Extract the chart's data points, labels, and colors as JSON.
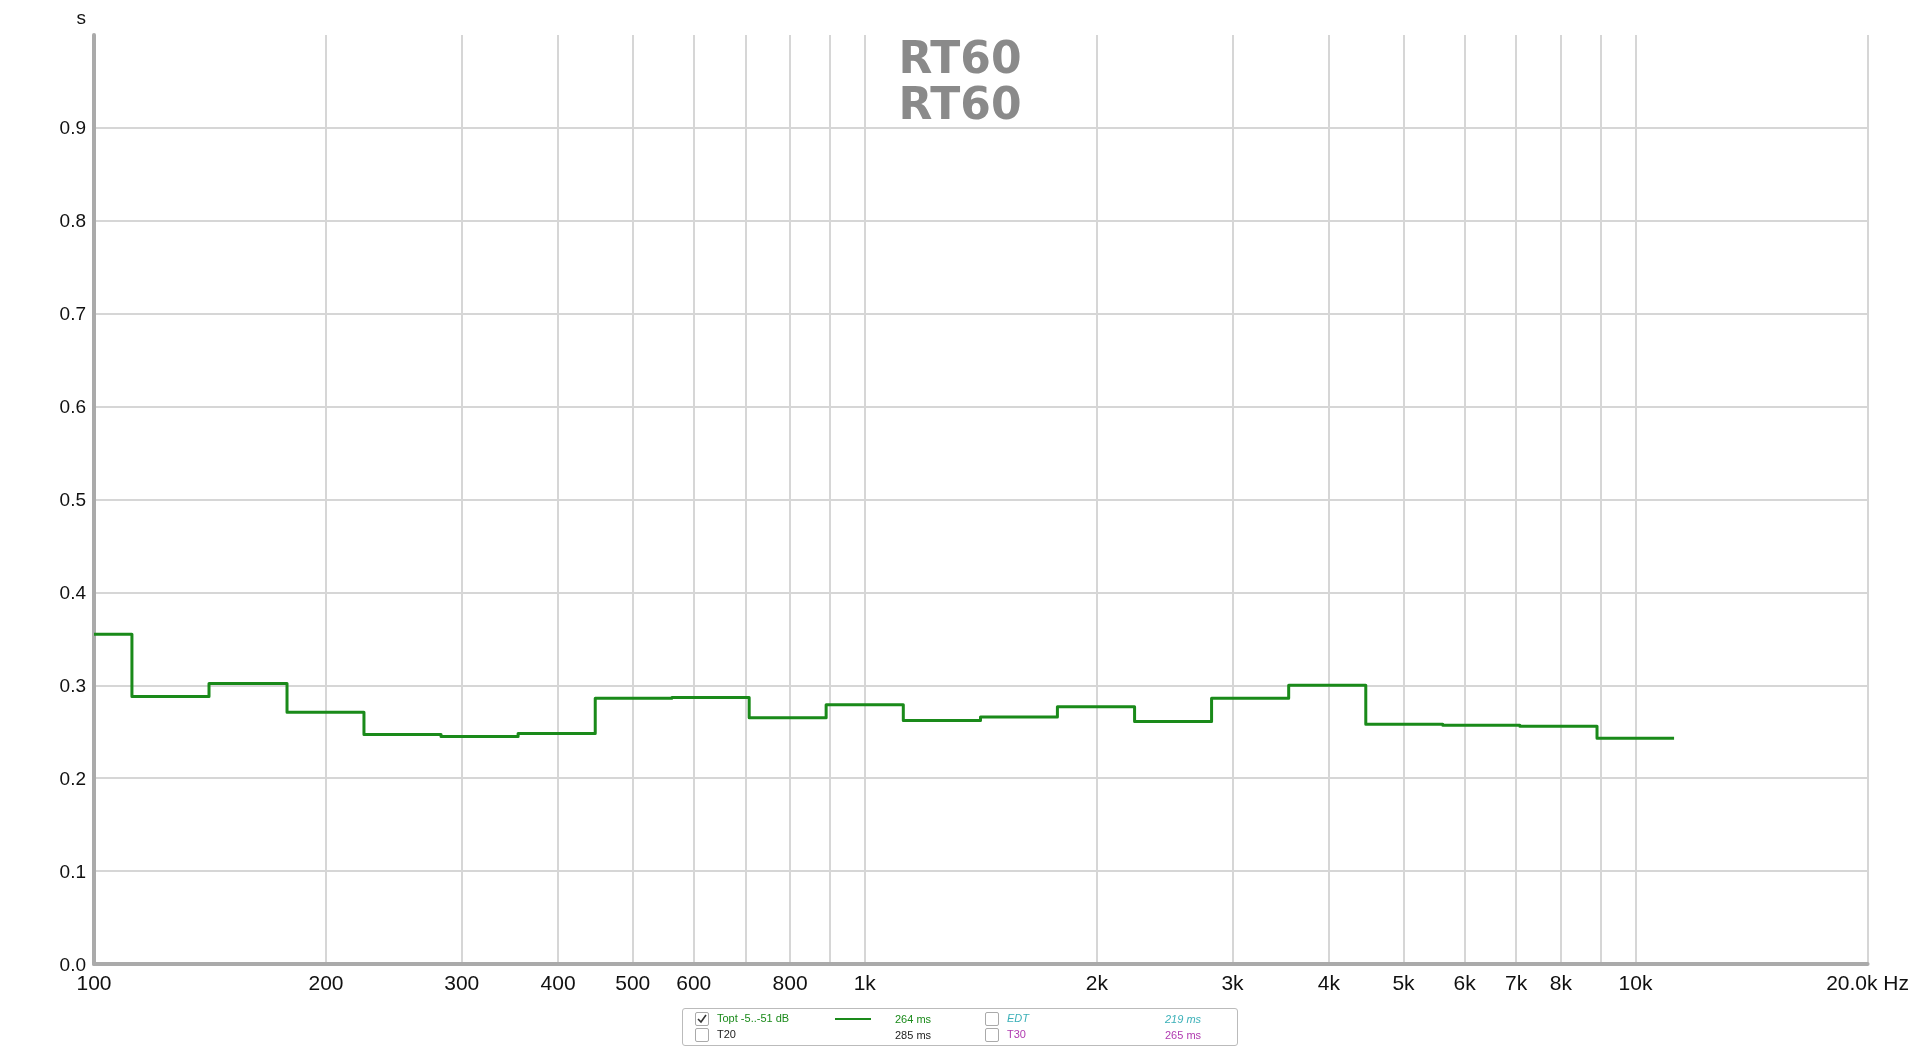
{
  "chart_data": {
    "type": "step",
    "title": "RT60",
    "subtitle": "RT60",
    "ylabel": "s",
    "x": [
      100,
      112,
      141,
      178,
      224,
      282,
      355,
      447,
      562,
      708,
      891,
      1122,
      1413,
      1778,
      2239,
      2818,
      3548,
      4467,
      5623,
      7079,
      8913,
      11220
    ],
    "series": [
      {
        "name": "Topt -5..-51 dB",
        "color": "#1a8a1a",
        "values": [
          0.355,
          0.288,
          0.302,
          0.271,
          0.247,
          0.245,
          0.248,
          0.286,
          0.287,
          0.265,
          0.279,
          0.262,
          0.266,
          0.277,
          0.261,
          0.286,
          0.3,
          0.258,
          0.257,
          0.256,
          0.243,
          0.243
        ]
      }
    ],
    "log": "x",
    "xlim": [
      100,
      20000
    ],
    "xticks": [
      100,
      200,
      300,
      400,
      500,
      600,
      {
        "value": 700,
        "label": null
      },
      800,
      {
        "value": 900,
        "label": null
      },
      {
        "value": 1000,
        "label": "1k"
      },
      {
        "value": 2000,
        "label": "2k"
      },
      {
        "value": 3000,
        "label": "3k"
      },
      {
        "value": 4000,
        "label": "4k"
      },
      {
        "value": 5000,
        "label": "5k"
      },
      {
        "value": 6000,
        "label": "6k"
      },
      {
        "value": 7000,
        "label": "7k"
      },
      {
        "value": 8000,
        "label": "8k"
      },
      {
        "value": 9000,
        "label": null
      },
      {
        "value": 10000,
        "label": "10k"
      },
      {
        "value": 20000,
        "label": "20.0k Hz"
      }
    ],
    "ylim": [
      0,
      1.0
    ],
    "yticks": [
      {
        "value": 0,
        "label": "0.0"
      },
      0.1,
      0.2,
      0.3,
      0.4,
      0.5,
      0.6,
      0.7,
      0.8,
      0.9
    ],
    "grid": true,
    "legend": "bottom",
    "line_style": "solid",
    "marker": "none",
    "annotations": [
      "264 ms",
      "EDT",
      "219 ms",
      "T20",
      "285 ms",
      "T30",
      "265 ms"
    ]
  }
}
